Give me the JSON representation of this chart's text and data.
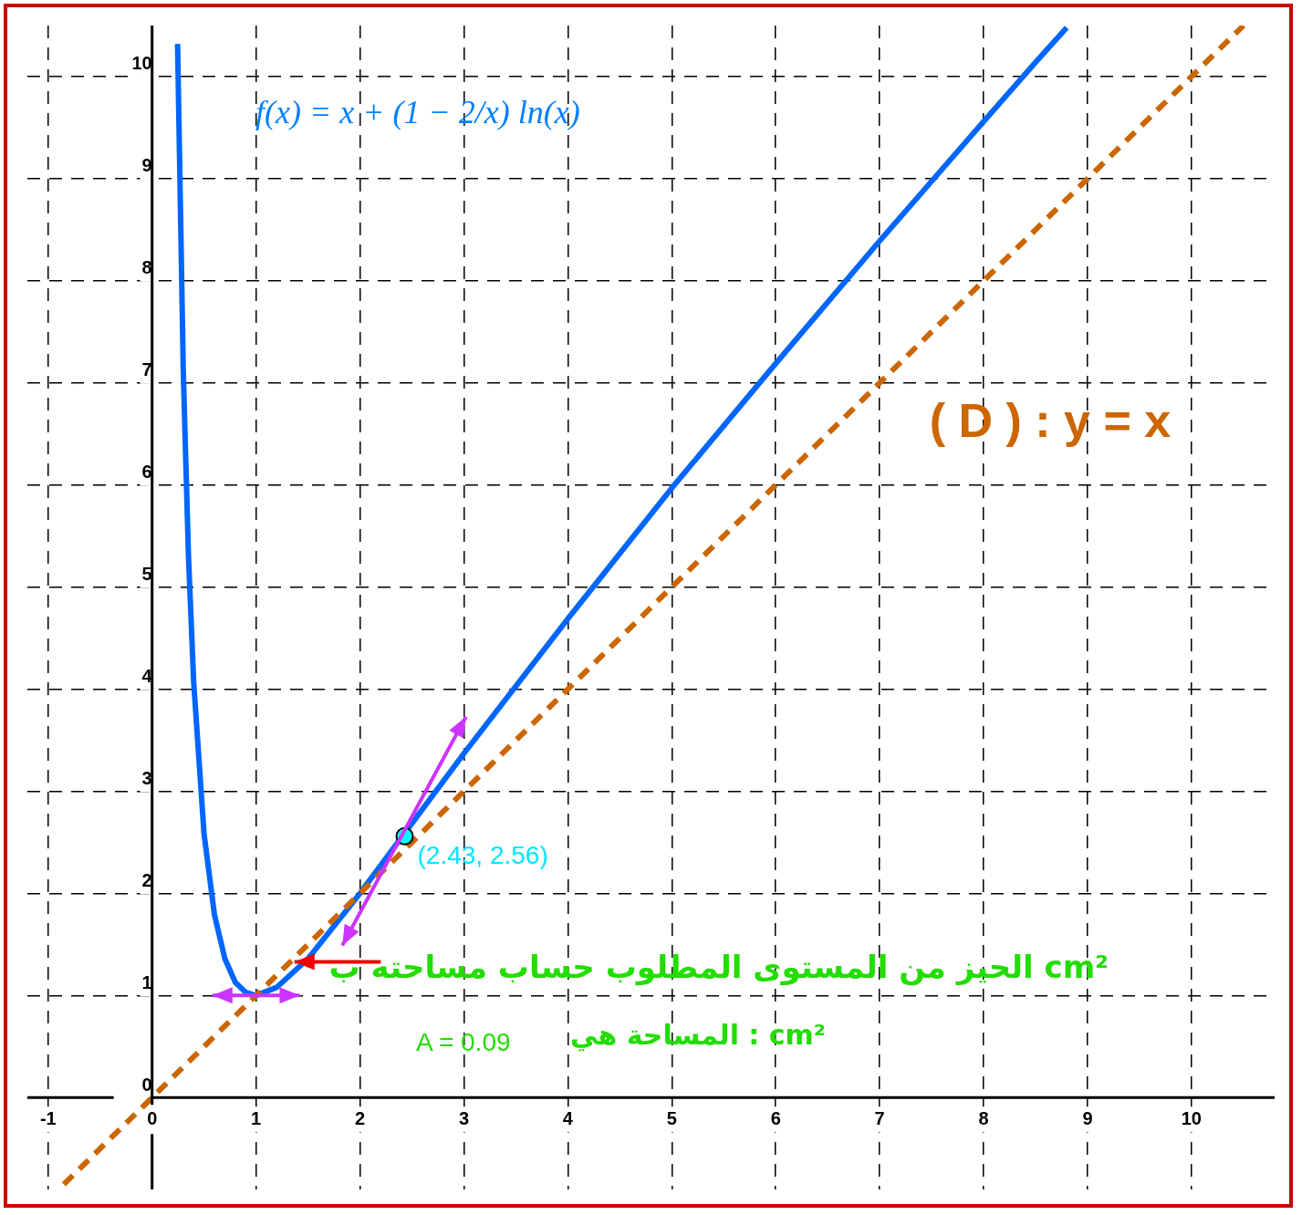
{
  "chart_data": {
    "type": "line",
    "xlim": [
      -1.2,
      10.8
    ],
    "ylim": [
      -0.9,
      10.5
    ],
    "xticks": [
      -1,
      0,
      1,
      2,
      3,
      4,
      5,
      6,
      7,
      8,
      9,
      10
    ],
    "yticks": [
      0,
      1,
      2,
      3,
      4,
      5,
      6,
      7,
      8,
      9,
      10
    ],
    "grid": true,
    "legend": false,
    "series": [
      {
        "name": "( D ) : y = x",
        "color": "#cc6600",
        "line_style": "dashed",
        "marker": "none",
        "x": [
          -0.85,
          10.5
        ],
        "values": [
          -0.85,
          10.5
        ]
      },
      {
        "color": "#0066ff",
        "line_style": "solid",
        "marker": "none",
        "x": [
          0.245,
          0.3,
          0.35,
          0.4,
          0.5,
          0.6,
          0.7,
          0.8,
          0.9,
          1,
          1.2,
          1.5,
          2,
          2.43,
          3,
          4,
          5,
          6,
          7,
          8,
          8.5,
          8.8
        ],
        "values": [
          10.32,
          7.12,
          5.3,
          4.07,
          2.58,
          1.79,
          1.36,
          1.13,
          1.03,
          1,
          1.08,
          1.36,
          2,
          2.59,
          3.37,
          4.69,
          5.97,
          7.19,
          8.39,
          9.56,
          10.14,
          10.48
        ]
      },
      {
        "type": "scatter",
        "color": "#00ffff",
        "marker": "circle",
        "x": [
          2.43
        ],
        "values": [
          2.56
        ]
      }
    ],
    "annotations": [
      {
        "text": "(2.43, 2.56)",
        "x": 2.43,
        "y": 2.56
      },
      "f(x) = x + (1 − 2/x) ln(x)",
      "الحيز من المستوى المطلوب حساب مساحته ب cm²",
      "A = 0.09",
      "المساحة هي : cm²"
    ]
  }
}
